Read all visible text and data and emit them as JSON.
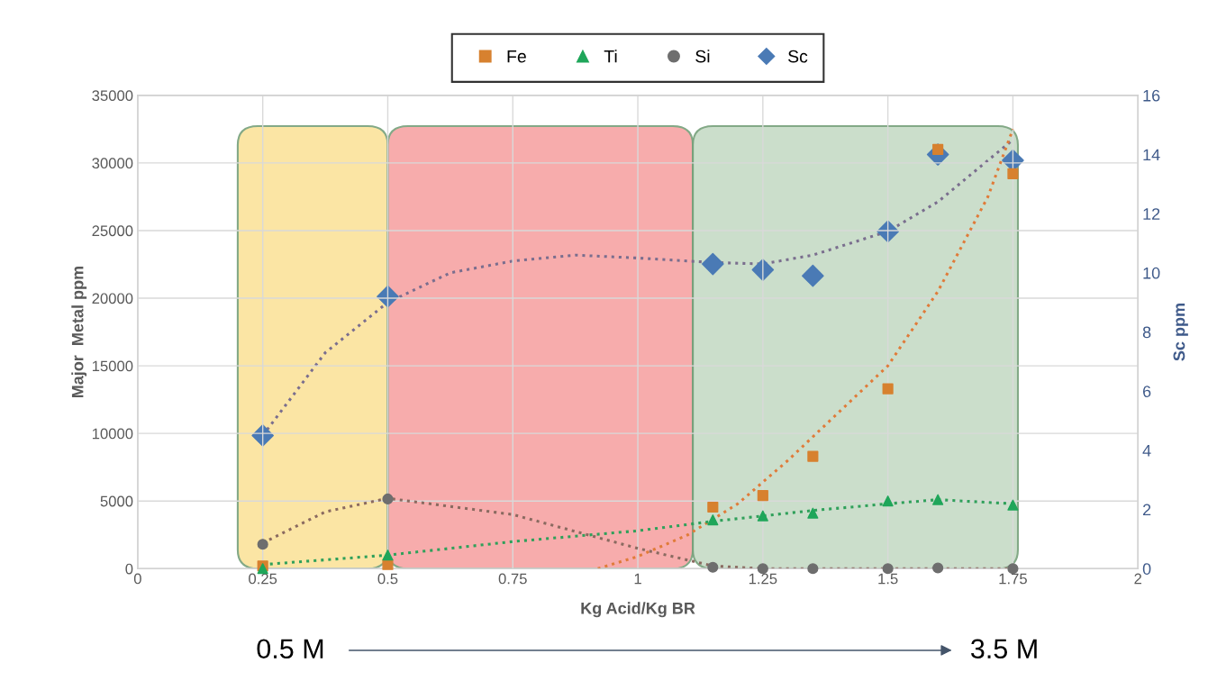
{
  "chart_data": {
    "type": "scatter",
    "xlabel": "Kg Acid/Kg BR",
    "ylabel": "Major  Metal ppm",
    "y2label": "Sc ppm",
    "xlim": [
      0,
      2
    ],
    "xticks": [
      0,
      0.25,
      0.5,
      0.75,
      1,
      1.25,
      1.5,
      1.75,
      2
    ],
    "ylim": [
      0,
      35000
    ],
    "yticks": [
      0,
      5000,
      10000,
      15000,
      20000,
      25000,
      30000,
      35000
    ],
    "y2lim": [
      0,
      16
    ],
    "y2ticks": [
      0,
      2,
      4,
      6,
      8,
      10,
      12,
      14,
      16
    ],
    "grid": true,
    "legend": "top",
    "series": [
      {
        "name": "Fe",
        "marker": "square",
        "color": "#d7812f",
        "x": [
          0.25,
          0.5,
          1.15,
          1.25,
          1.35,
          1.5,
          1.6,
          1.75
        ],
        "values": [
          200,
          300,
          4550,
          5400,
          8300,
          13300,
          31000,
          29200
        ]
      },
      {
        "name": "Ti",
        "marker": "triangle",
        "color": "#1fa65a",
        "x": [
          0.25,
          0.5,
          1.15,
          1.25,
          1.35,
          1.5,
          1.6,
          1.75
        ],
        "values": [
          0,
          1000,
          3600,
          3900,
          4100,
          5000,
          5100,
          4700
        ]
      },
      {
        "name": "Si",
        "marker": "circle",
        "color": "#6e6e6e",
        "x": [
          0.25,
          0.5,
          1.15,
          1.25,
          1.35,
          1.5,
          1.6,
          1.75
        ],
        "values": [
          1800,
          5150,
          100,
          0,
          0,
          0,
          50,
          0
        ]
      },
      {
        "name": "Sc",
        "marker": "diamond",
        "axis": "y2",
        "color": "#4a7ab5",
        "x": [
          0.25,
          0.5,
          1.15,
          1.25,
          1.35,
          1.5,
          1.6,
          1.75
        ],
        "values": [
          4.5,
          9.2,
          10.3,
          10.1,
          9.9,
          11.4,
          14.0,
          13.8
        ]
      },
      {
        "type": "line",
        "line_style": "dotted",
        "color": "#e07b39",
        "x": [
          0.92,
          1.0,
          1.1,
          1.2,
          1.3,
          1.4,
          1.5,
          1.6,
          1.7,
          1.75
        ],
        "values": [
          0,
          900,
          2500,
          4800,
          8000,
          11500,
          15000,
          20500,
          27500,
          32500
        ]
      },
      {
        "type": "line",
        "line_style": "dotted",
        "color": "#2fa05a",
        "x": [
          0.25,
          0.5,
          0.75,
          1.0,
          1.15,
          1.25,
          1.35,
          1.5,
          1.6,
          1.75
        ],
        "values": [
          300,
          1000,
          2000,
          2800,
          3500,
          3900,
          4300,
          4800,
          5100,
          4800
        ]
      },
      {
        "type": "line",
        "line_style": "dotted",
        "color": "#8a6a60",
        "x": [
          0.25,
          0.375,
          0.5,
          0.75,
          1.0,
          1.15,
          1.25,
          1.5,
          1.75
        ],
        "values": [
          1900,
          4200,
          5200,
          4000,
          1500,
          200,
          0,
          0,
          0
        ]
      },
      {
        "type": "line",
        "line_style": "dotted",
        "axis": "y2",
        "color": "#7a6e8e",
        "x": [
          0.25,
          0.375,
          0.5,
          0.625,
          0.75,
          0.875,
          1.0,
          1.15,
          1.25,
          1.35,
          1.5,
          1.6,
          1.75
        ],
        "values": [
          4.5,
          7.3,
          9.0,
          10.0,
          10.4,
          10.6,
          10.5,
          10.35,
          10.3,
          10.6,
          11.4,
          12.4,
          14.5
        ]
      }
    ],
    "bands": [
      {
        "axis": "x",
        "from": 0.2,
        "to": 0.5,
        "color": "#fbe39b"
      },
      {
        "axis": "x",
        "from": 0.5,
        "to": 1.11,
        "color": "#f7a4a4"
      },
      {
        "axis": "x",
        "from": 1.11,
        "to": 1.76,
        "color": "#c6dbc6"
      }
    ],
    "annotations": [
      "0.5 M",
      "3.5 M"
    ]
  }
}
